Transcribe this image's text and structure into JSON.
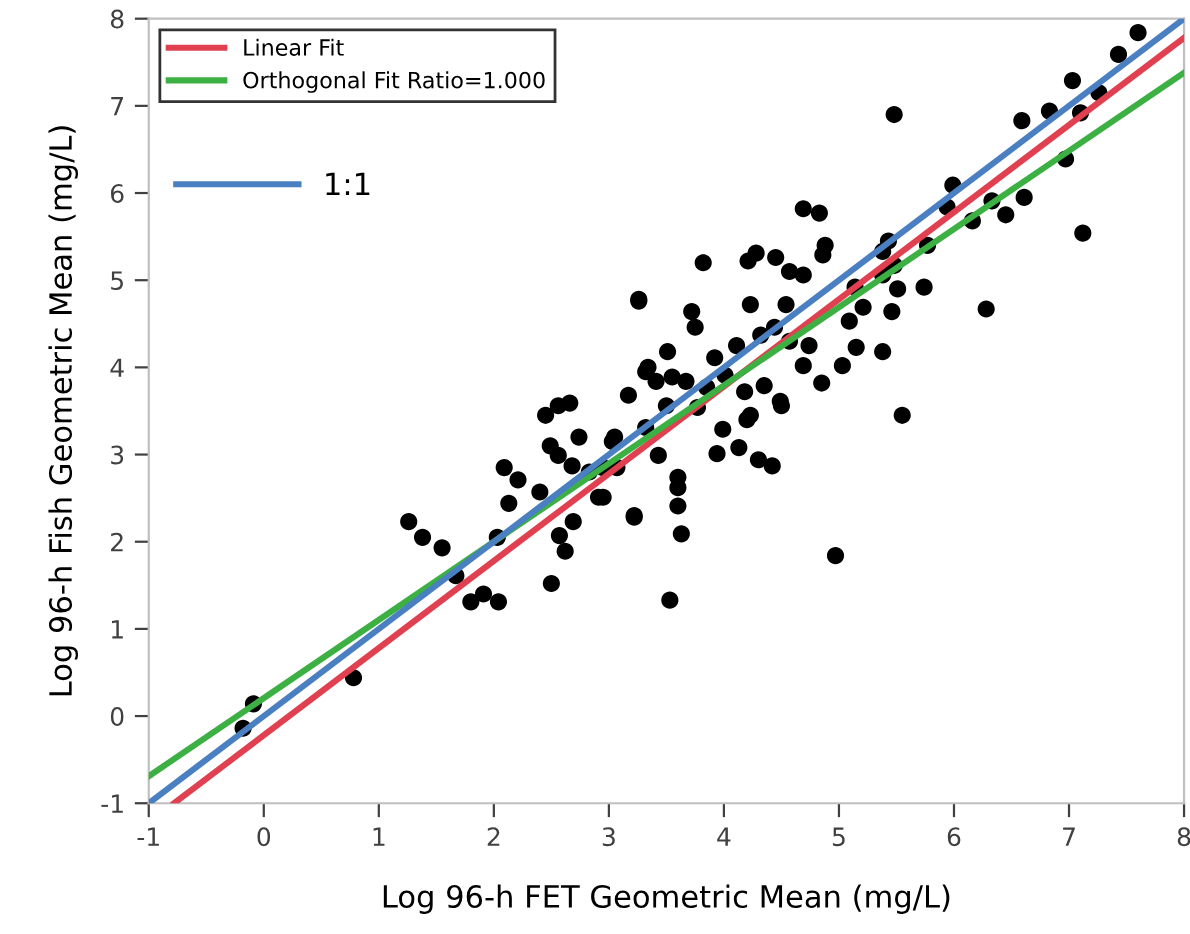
{
  "chart_data": {
    "type": "scatter",
    "xlabel": "Log 96-h FET Geometric Mean (mg/L)",
    "ylabel": "Log 96-h Fish Geometric Mean (mg/L)",
    "xlim": [
      -1,
      8
    ],
    "ylim": [
      -1,
      8
    ],
    "xticks": [
      -1,
      0,
      1,
      2,
      3,
      4,
      5,
      6,
      7,
      8
    ],
    "yticks": [
      -1,
      0,
      1,
      2,
      3,
      4,
      5,
      6,
      7,
      8
    ],
    "grid": false,
    "legend": "top left",
    "series": [
      {
        "marker": "circle",
        "color": "#000000",
        "x": [
          -0.09,
          -0.18,
          0.78,
          1.26,
          1.38,
          1.55,
          1.67,
          1.8,
          1.91,
          2.04,
          2.03,
          2.13,
          2.09,
          2.21,
          2.4,
          2.45,
          2.56,
          2.66,
          2.49,
          2.56,
          2.74,
          2.68,
          2.83,
          2.57,
          2.69,
          2.62,
          2.5,
          2.91,
          2.95,
          3.03,
          3.07,
          3.22,
          3.17,
          3.26,
          3.32,
          3.32,
          7.6,
          7.43,
          7.03,
          7.26,
          7.1,
          6.83,
          6.59,
          6.97,
          5.48,
          5.99,
          5.94,
          6.16,
          6.33,
          6.45,
          6.61,
          7.12,
          6.28,
          4.69,
          4.83,
          4.88,
          4.86,
          4.28,
          4.45,
          4.21,
          3.82,
          4.57,
          4.69,
          3.26,
          4.23,
          3.72,
          3.75,
          4.54,
          5.43,
          5.38,
          5.48,
          5.38,
          5.77,
          5.74,
          5.51,
          5.14,
          5.21,
          5.46,
          5.09,
          5.15,
          5.38,
          5.03,
          4.85,
          5.55,
          3.51,
          3.92,
          4.11,
          4.32,
          4.44,
          4.57,
          4.74,
          3.34,
          3.41,
          3.55,
          3.67,
          3.5,
          3.85,
          4.01,
          4.18,
          4.35,
          4.49,
          4.23,
          4.69,
          3.77,
          3.99,
          4.2,
          3.94,
          4.13,
          4.3,
          4.42,
          3.6,
          3.6,
          3.6,
          3.63,
          3.22,
          3.53,
          4.97,
          3.05,
          3.43,
          2.95,
          4.5
        ],
        "values": [
          0.14,
          -0.14,
          0.44,
          2.23,
          2.05,
          1.93,
          1.61,
          1.31,
          1.4,
          1.31,
          2.05,
          2.44,
          2.85,
          2.71,
          2.57,
          3.45,
          3.56,
          3.59,
          3.1,
          2.99,
          3.2,
          2.87,
          2.8,
          2.07,
          2.23,
          1.89,
          1.52,
          2.51,
          2.85,
          3.15,
          2.85,
          2.28,
          3.68,
          4.78,
          3.95,
          3.31,
          7.84,
          7.59,
          7.29,
          7.15,
          6.92,
          6.94,
          6.83,
          6.39,
          6.9,
          6.09,
          5.84,
          5.68,
          5.91,
          5.75,
          5.95,
          5.54,
          4.67,
          5.82,
          5.77,
          5.4,
          5.29,
          5.31,
          5.26,
          5.22,
          5.2,
          5.1,
          5.06,
          4.76,
          4.72,
          4.64,
          4.46,
          4.72,
          5.45,
          5.33,
          5.17,
          5.06,
          5.4,
          4.92,
          4.9,
          4.92,
          4.69,
          4.64,
          4.53,
          4.23,
          4.18,
          4.02,
          3.82,
          3.45,
          4.18,
          4.11,
          4.25,
          4.37,
          4.46,
          4.3,
          4.25,
          4.0,
          3.84,
          3.89,
          3.84,
          3.56,
          3.77,
          3.91,
          3.72,
          3.79,
          3.61,
          3.45,
          4.02,
          3.54,
          3.29,
          3.4,
          3.01,
          3.08,
          2.94,
          2.87,
          2.74,
          2.62,
          2.41,
          2.09,
          2.3,
          1.33,
          1.84,
          3.2,
          2.99,
          2.51,
          3.56
        ]
      },
      {
        "type": "line",
        "name": "Linear Fit",
        "marker": "none",
        "color": "#e0404f",
        "x": [
          -0.78,
          8
        ],
        "values": [
          -1,
          7.78
        ]
      },
      {
        "type": "line",
        "name": "Orthogonal Fit Ratio=1.000",
        "marker": "none",
        "color": "#3cb043",
        "x": [
          -1,
          8
        ],
        "values": [
          -0.69,
          7.38
        ]
      },
      {
        "type": "line",
        "name": "1:1",
        "marker": "none",
        "color": "#4a7fc1",
        "x": [
          -1,
          8
        ],
        "values": [
          -1,
          8
        ]
      }
    ]
  }
}
